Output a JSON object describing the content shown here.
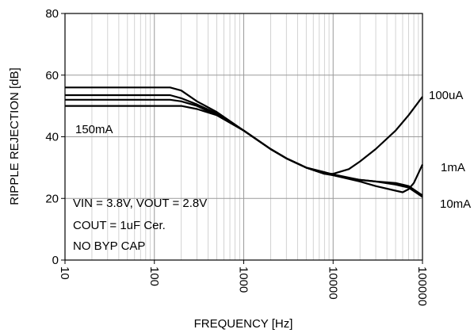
{
  "chart_data": {
    "type": "line",
    "xlabel": "FREQUENCY [Hz]",
    "ylabel": "RIPPLE REJECTION [dB]",
    "x_scale": "log",
    "xlim": [
      10,
      100000
    ],
    "ylim": [
      0,
      80
    ],
    "x_ticks": [
      "10",
      "100",
      "1000",
      "10000",
      "100000"
    ],
    "y_ticks": [
      "0",
      "20",
      "40",
      "60",
      "80"
    ],
    "grid": true,
    "annotations": [
      "VIN = 3.8V, VOUT = 2.8V",
      "COUT = 1uF Cer.",
      "NO BYP CAP"
    ],
    "series": [
      {
        "name": "150mA",
        "x": [
          10,
          100,
          150,
          200,
          300,
          500,
          1000,
          2000,
          3000,
          5000,
          8000,
          10000,
          20000,
          30000,
          50000,
          70000,
          100000
        ],
        "y": [
          50,
          50,
          50,
          50,
          49,
          47,
          42,
          36,
          33,
          30,
          28,
          27.5,
          26,
          25.5,
          25,
          24,
          21
        ]
      },
      {
        "name": "10mA",
        "x": [
          10,
          100,
          150,
          200,
          300,
          500,
          1000,
          2000,
          3000,
          5000,
          8000,
          10000,
          20000,
          30000,
          50000,
          70000,
          100000
        ],
        "y": [
          52,
          52,
          52,
          51.5,
          50,
          47,
          42,
          36,
          33,
          30,
          28.5,
          27.8,
          26,
          25.5,
          24.5,
          23.5,
          20.5
        ]
      },
      {
        "name": "1mA",
        "x": [
          10,
          100,
          150,
          200,
          300,
          500,
          1000,
          2000,
          3000,
          5000,
          8000,
          10000,
          20000,
          30000,
          50000,
          60000,
          70000,
          80000,
          100000
        ],
        "y": [
          53.5,
          53.5,
          53.5,
          52.5,
          50.5,
          47.5,
          42,
          36,
          33,
          30,
          28.5,
          27.5,
          25.5,
          24,
          22.5,
          22,
          23,
          25,
          31
        ]
      },
      {
        "name": "100uA",
        "x": [
          10,
          100,
          150,
          200,
          300,
          500,
          1000,
          2000,
          3000,
          5000,
          8000,
          10000,
          15000,
          20000,
          30000,
          50000,
          70000,
          100000
        ],
        "y": [
          56,
          56,
          56,
          55,
          51.5,
          48,
          42,
          36,
          33,
          30,
          28,
          28,
          29.5,
          32,
          36,
          42,
          47,
          53
        ]
      }
    ]
  }
}
